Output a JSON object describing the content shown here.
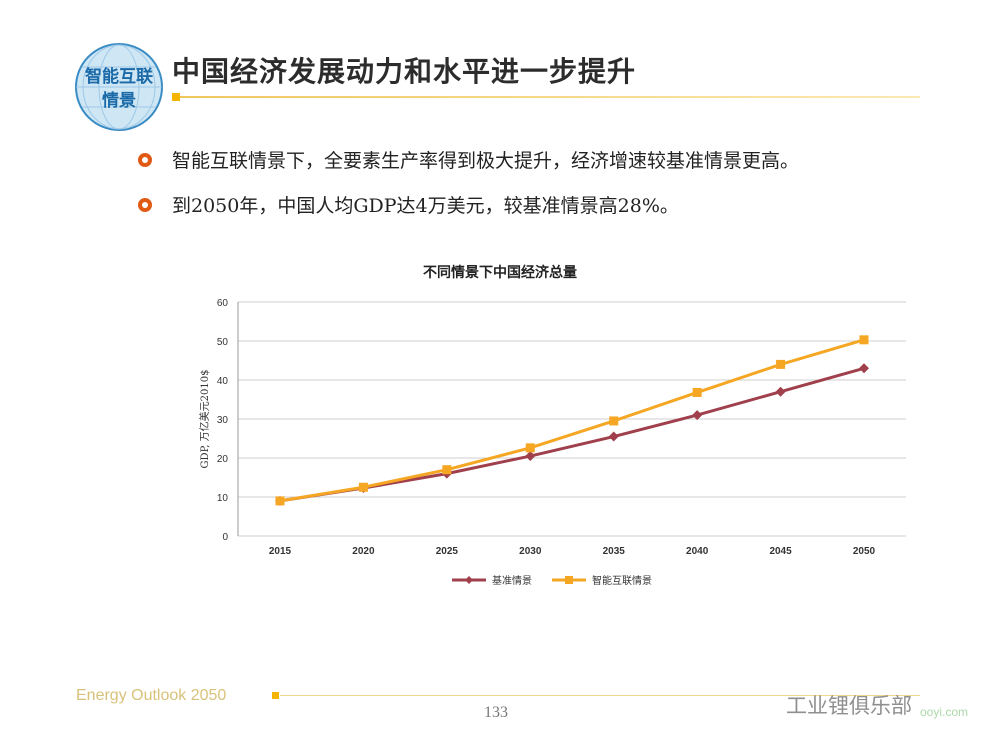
{
  "logo": {
    "line1": "智能互联",
    "line2": "情景"
  },
  "header": {
    "title": "中国经济发展动力和水平进一步提升"
  },
  "bullets": [
    "智能互联情景下，全要素生产率得到极大提升，经济增速较基准情景更高。",
    "到2050年，中国人均GDP达4万美元，较基准情景高28%。"
  ],
  "footer": {
    "left": "Energy Outlook 2050",
    "page": "133",
    "watermark": "工业锂俱乐部",
    "watermark_sub": "ooyi.com"
  },
  "colors": {
    "baseline": "#a0404c",
    "smart": "#f5a623",
    "accent": "#f5b400",
    "bullet": "#e05a14"
  },
  "chart_data": {
    "type": "line",
    "title": "不同情景下中国经济总量",
    "ylabel": "GDP, 万亿美元2010$",
    "xlabel": "",
    "categories": [
      "2015",
      "2020",
      "2025",
      "2030",
      "2035",
      "2040",
      "2045",
      "2050"
    ],
    "ylim": [
      0,
      60
    ],
    "yticks": [
      0,
      10,
      20,
      30,
      40,
      50,
      60
    ],
    "grid": true,
    "legend": "bottom",
    "series": [
      {
        "name": "基准情景",
        "values": [
          9,
          12.3,
          16,
          20.5,
          25.5,
          31,
          37,
          43
        ],
        "color": "#a0404c",
        "marker": "diamond"
      },
      {
        "name": "智能互联情景",
        "values": [
          9,
          12.5,
          17,
          22.6,
          29.5,
          36.8,
          44,
          50.3
        ],
        "color": "#f5a623",
        "marker": "square"
      }
    ]
  }
}
